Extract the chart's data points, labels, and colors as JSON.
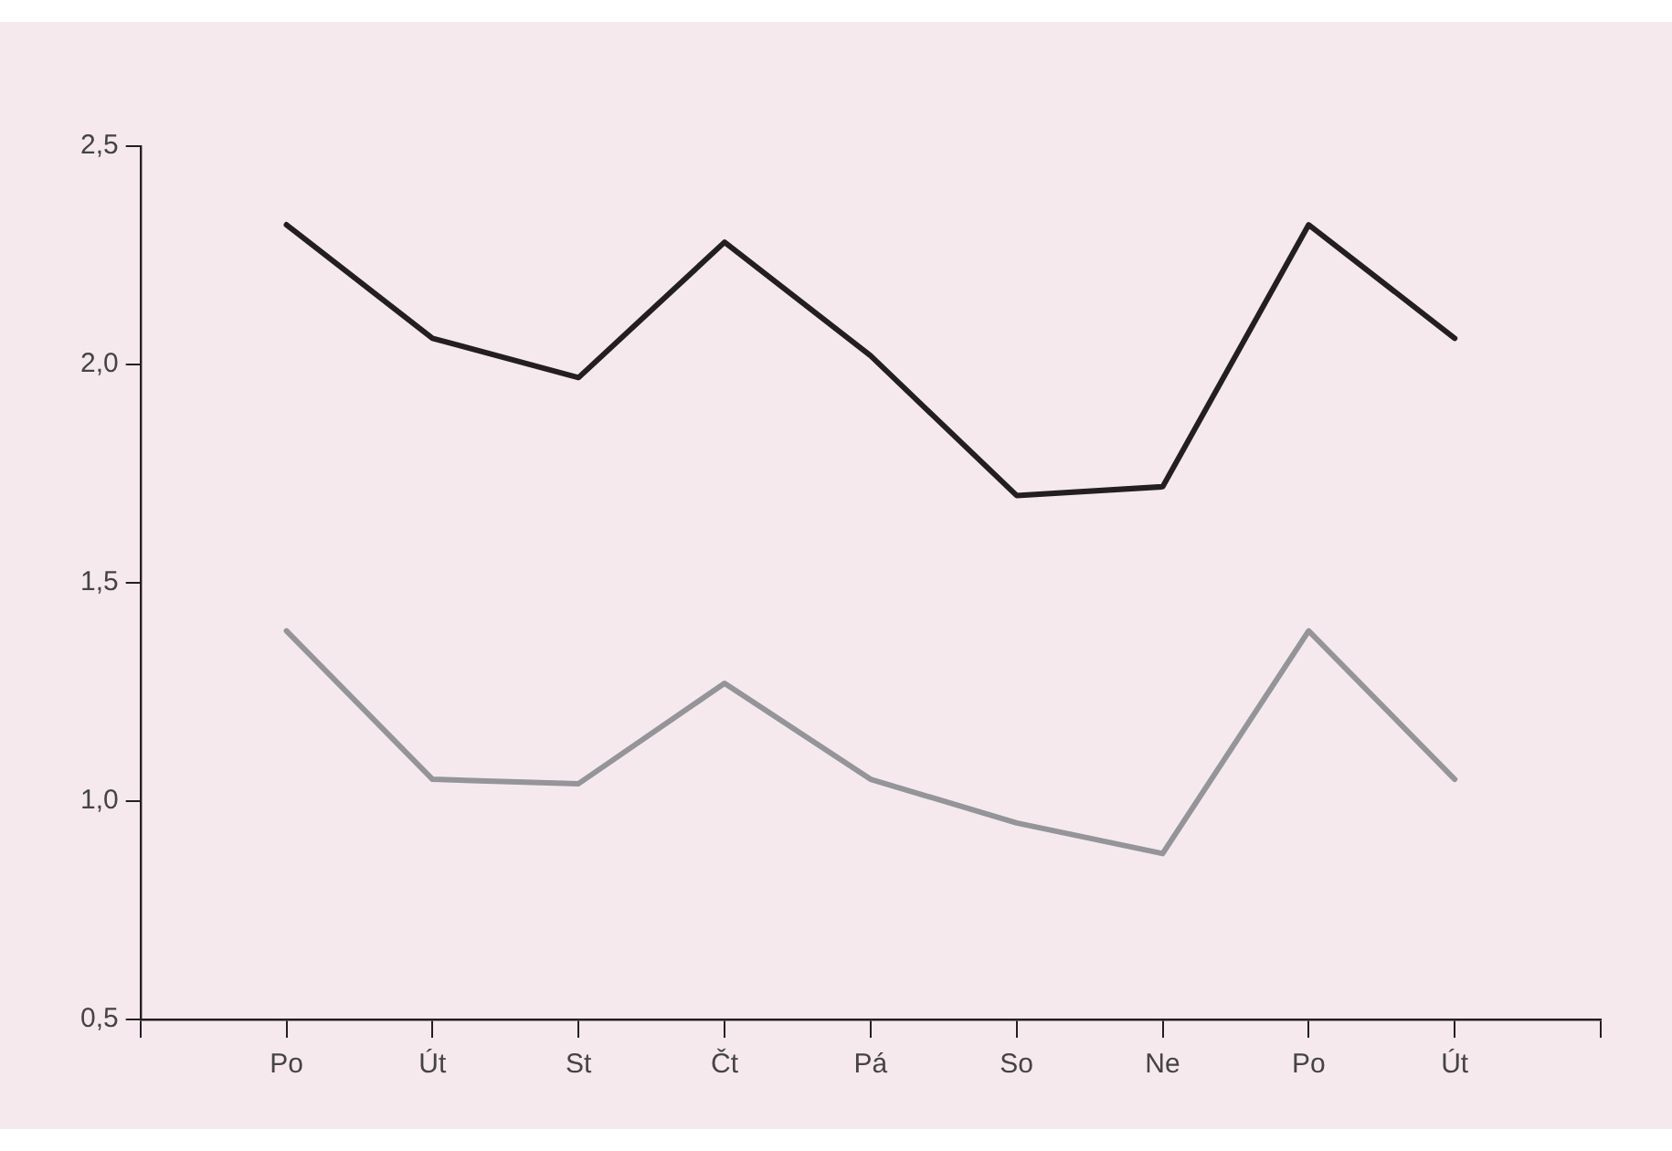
{
  "chart_data": {
    "type": "line",
    "categories": [
      "Po",
      "Út",
      "St",
      "Čt",
      "Pá",
      "So",
      "Ne",
      "Po",
      "Út"
    ],
    "series": [
      {
        "color": "#231f20",
        "values": [
          2.32,
          2.06,
          1.97,
          2.28,
          2.02,
          1.7,
          1.72,
          2.32,
          2.06
        ]
      },
      {
        "color": "#939598",
        "values": [
          1.39,
          1.05,
          1.04,
          1.27,
          1.05,
          0.95,
          0.88,
          1.39,
          1.05
        ]
      }
    ],
    "ylim": [
      0.5,
      2.5
    ],
    "yticks": [
      {
        "value": 0.5,
        "label": "0,5"
      },
      {
        "value": 1,
        "label": "1,0"
      },
      {
        "value": 1.5,
        "label": "1,5"
      },
      {
        "value": 2,
        "label": "2,0"
      },
      {
        "value": 2.5,
        "label": "2,5"
      }
    ],
    "grid": false,
    "legend": false,
    "marker": "none",
    "line_style": "solid"
  }
}
